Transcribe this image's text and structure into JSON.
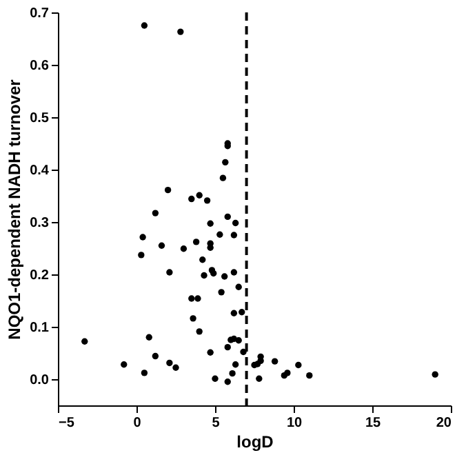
{
  "chart_data": {
    "type": "scatter",
    "xlabel": "logD",
    "ylabel": "NQO1-dependent NADH turnover",
    "xlim": [
      -5,
      20
    ],
    "xticks": [
      -5,
      0,
      5,
      10,
      15,
      20
    ],
    "ylim": [
      -0.05,
      0.7
    ],
    "yticks": [
      {
        "value": 0,
        "label": "0.0"
      },
      0.1,
      0.2,
      0.3,
      0.4,
      0.5,
      0.6,
      0.7
    ],
    "grid": false,
    "marker": "circle",
    "ref_lines": [
      {
        "axis": "x",
        "value": 7,
        "line_style": "dashed",
        "color": "#000000"
      }
    ],
    "series": [
      {
        "color": "#000000",
        "x": [
          0.5,
          2.8,
          5.8,
          5.8,
          5.65,
          5.5,
          2.0,
          3.5,
          4.0,
          4.5,
          1.2,
          5.8,
          6.3,
          4.7,
          0.4,
          5.3,
          6.2,
          1.6,
          3.8,
          4.7,
          4.7,
          3.0,
          0.3,
          4.2,
          2.1,
          4.8,
          4.3,
          4.9,
          5.6,
          6.2,
          6.5,
          5.4,
          3.5,
          3.9,
          6.2,
          6.7,
          3.6,
          4.0,
          -3.3,
          0.8,
          6.0,
          6.2,
          6.5,
          5.8,
          4.7,
          6.8,
          1.2,
          -0.8,
          2.1,
          2.5,
          6.3,
          0.5,
          6.1,
          5.0,
          5.8,
          7.5,
          7.7,
          7.9,
          7.9,
          7.8,
          8.8,
          9.4,
          9.6,
          10.3,
          11.0,
          19.0
        ],
        "values": [
          0.675,
          0.663,
          0.45,
          0.445,
          0.414,
          0.384,
          0.361,
          0.344,
          0.351,
          0.341,
          0.317,
          0.31,
          0.298,
          0.297,
          0.271,
          0.276,
          0.275,
          0.255,
          0.262,
          0.259,
          0.251,
          0.249,
          0.237,
          0.228,
          0.204,
          0.208,
          0.198,
          0.202,
          0.196,
          0.204,
          0.176,
          0.166,
          0.154,
          0.154,
          0.126,
          0.128,
          0.116,
          0.091,
          0.072,
          0.08,
          0.075,
          0.077,
          0.074,
          0.061,
          0.051,
          0.052,
          0.044,
          0.028,
          0.031,
          0.022,
          0.028,
          0.012,
          0.011,
          0.001,
          -0.005,
          0.027,
          0.029,
          0.043,
          0.035,
          0.001,
          0.034,
          0.007,
          0.012,
          0.027,
          0.007,
          0.009
        ]
      }
    ]
  }
}
